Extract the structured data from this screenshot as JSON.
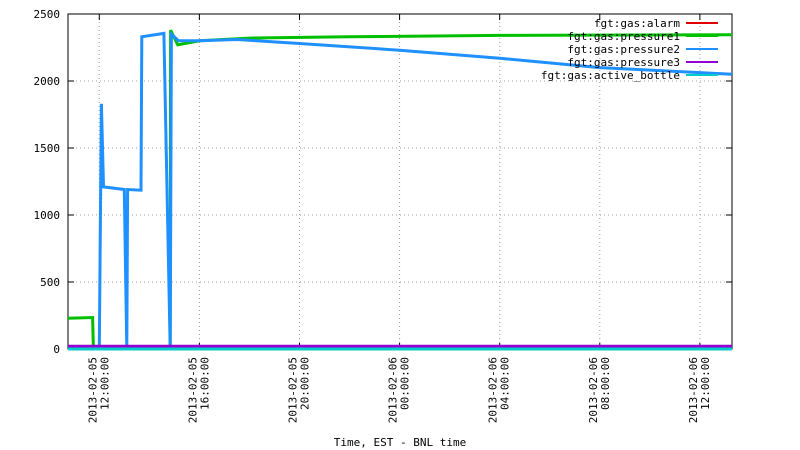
{
  "chart_data": {
    "type": "line",
    "xlabel": "Time, EST - BNL time",
    "xlim": [
      "2013-02-05 10:45",
      "2013-02-06 13:17"
    ],
    "xticks": [
      {
        "value": "2013-02-05 12:00",
        "label": [
          "2013-02-05",
          "12:00:00"
        ]
      },
      {
        "value": "2013-02-05 16:00",
        "label": [
          "2013-02-05",
          "16:00:00"
        ]
      },
      {
        "value": "2013-02-05 20:00",
        "label": [
          "2013-02-05",
          "20:00:00"
        ]
      },
      {
        "value": "2013-02-06 00:00",
        "label": [
          "2013-02-06",
          "00:00:00"
        ]
      },
      {
        "value": "2013-02-06 04:00",
        "label": [
          "2013-02-06",
          "04:00:00"
        ]
      },
      {
        "value": "2013-02-06 08:00",
        "label": [
          "2013-02-06",
          "08:00:00"
        ]
      },
      {
        "value": "2013-02-06 12:00",
        "label": [
          "2013-02-06",
          "12:00:00"
        ]
      }
    ],
    "ylim": [
      0,
      2500
    ],
    "yticks": [
      0,
      500,
      1000,
      1500,
      2000,
      2500
    ],
    "grid": true,
    "legend": "top-right",
    "series": [
      {
        "name": "fgt:gas:alarm",
        "color": "#e00000",
        "x": [
          "2013-02-05 10:45",
          "2013-02-06 13:17"
        ],
        "values": [
          0,
          0
        ]
      },
      {
        "name": "fgt:gas:pressure1",
        "color": "#00c000",
        "x": [
          "2013-02-05 10:45",
          "2013-02-05 11:44",
          "2013-02-05 11:46",
          "2013-02-05 14:50",
          "2013-02-05 14:51",
          "2013-02-05 15:08",
          "2013-02-05 16:00",
          "2013-02-05 18:00",
          "2013-02-05 22:00",
          "2013-02-06 04:00",
          "2013-02-06 13:17"
        ],
        "values": [
          230,
          235,
          0,
          0,
          2380,
          2270,
          2300,
          2320,
          2330,
          2340,
          2345
        ]
      },
      {
        "name": "fgt:gas:pressure2",
        "color": "#1e90ff",
        "x": [
          "2013-02-05 10:45",
          "2013-02-05 12:00",
          "2013-02-05 12:05",
          "2013-02-05 12:10",
          "2013-02-05 13:00",
          "2013-02-05 13:06",
          "2013-02-05 13:08",
          "2013-02-05 13:40",
          "2013-02-05 13:42",
          "2013-02-05 14:35",
          "2013-02-05 14:50",
          "2013-02-05 14:53",
          "2013-02-05 15:10",
          "2013-02-05 16:00",
          "2013-02-05 17:30",
          "2013-02-05 20:00",
          "2013-02-06 00:00",
          "2013-02-06 04:00",
          "2013-02-06 08:00",
          "2013-02-06 13:17"
        ],
        "values": [
          0,
          0,
          1830,
          1210,
          1190,
          0,
          1190,
          1185,
          2330,
          2355,
          0,
          2350,
          2300,
          2300,
          2310,
          2280,
          2230,
          2170,
          2100,
          2050
        ]
      },
      {
        "name": "fgt:gas:pressure3",
        "color": "#9400d3",
        "x": [
          "2013-02-05 10:45",
          "2013-02-06 13:17"
        ],
        "values": [
          20,
          20
        ]
      },
      {
        "name": "fgt:gas:active_bottle",
        "color": "#00cccc",
        "x": [
          "2013-02-05 10:45",
          "2013-02-06 13:17"
        ],
        "values": [
          0,
          0
        ]
      }
    ]
  }
}
